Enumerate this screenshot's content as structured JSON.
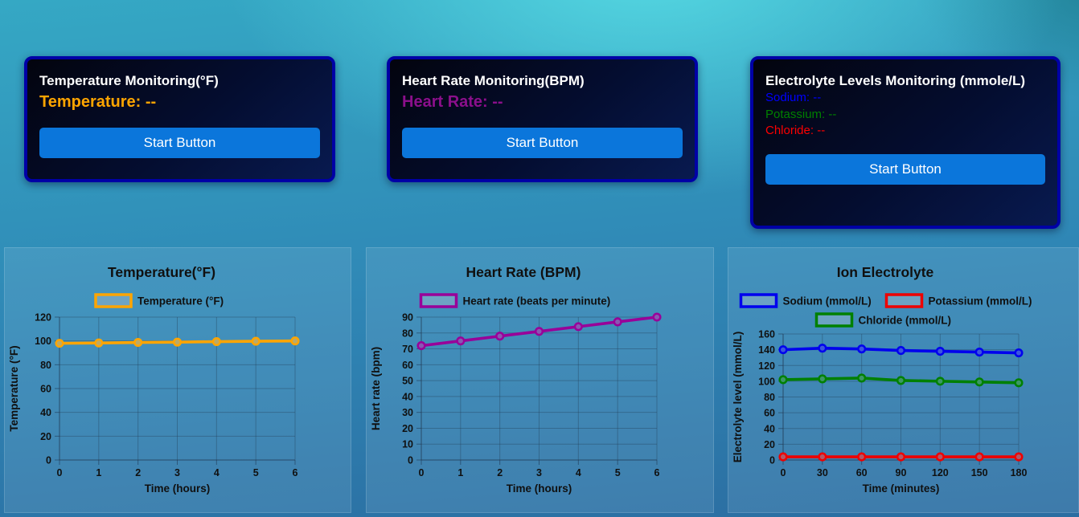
{
  "page": {
    "background_top_color": "#4fd4de",
    "background_bottom_color": "#2b6da1",
    "card_border_color": "#0000a6",
    "button_color": "#0b76db"
  },
  "cards": [
    {
      "title": "Temperature Monitoring(°F)",
      "readings": [
        {
          "label": "Temperature:",
          "value": "--",
          "color": "#FFA500"
        }
      ],
      "button_label": "Start Button"
    },
    {
      "title": "Heart Rate Monitoring(BPM)",
      "readings": [
        {
          "label": "Heart Rate:",
          "value": "--",
          "color": "#8B0F8B"
        }
      ],
      "button_label": "Start Button"
    },
    {
      "title": "Electrolyte Levels Monitoring (mmole/L)",
      "readings": [
        {
          "label": "Sodium:",
          "value": "--",
          "color": "#0000FF"
        },
        {
          "label": "Potassium:",
          "value": "--",
          "color": "#008000"
        },
        {
          "label": "Chloride:",
          "value": "--",
          "color": "#FF0000"
        }
      ],
      "button_label": "Start Button"
    }
  ],
  "chart_data": [
    {
      "type": "line",
      "title": "Temperature(°F)",
      "xlabel": "Time (hours)",
      "ylabel": "Temperature (°F)",
      "x": [
        0,
        1,
        2,
        3,
        4,
        5,
        6
      ],
      "ylim": [
        0,
        120
      ],
      "ytick_step": 20,
      "grid": true,
      "legend_position": "top",
      "series": [
        {
          "name": "Temperature (°F)",
          "color": "#FFA500",
          "values": [
            98,
            98.3,
            98.7,
            99,
            99.4,
            99.7,
            100
          ]
        }
      ]
    },
    {
      "type": "line",
      "title": "Heart Rate (BPM)",
      "xlabel": "Time (hours)",
      "ylabel": "Heart rate (bpm)",
      "x": [
        0,
        1,
        2,
        3,
        4,
        5,
        6
      ],
      "ylim": [
        0,
        90
      ],
      "ytick_step": 10,
      "grid": true,
      "legend_position": "top",
      "series": [
        {
          "name": "Heart rate (beats per minute)",
          "color": "#990099",
          "values": [
            72,
            75,
            78,
            81,
            84,
            87,
            90
          ]
        }
      ]
    },
    {
      "type": "line",
      "title": "Ion Electrolyte",
      "xlabel": "Time (minutes)",
      "ylabel": "Electrolyte level (mmol/L)",
      "x": [
        0,
        30,
        60,
        90,
        120,
        150,
        180
      ],
      "ylim": [
        0,
        160
      ],
      "ytick_step": 20,
      "grid": true,
      "legend_position": "top",
      "series": [
        {
          "name": "Sodium (mmol/L)",
          "color": "#0000EE",
          "values": [
            140,
            142,
            141,
            139,
            138,
            137,
            136
          ]
        },
        {
          "name": "Potassium (mmol/L)",
          "color": "#EE0000",
          "values": [
            4,
            4,
            4,
            4,
            4,
            4,
            4
          ]
        },
        {
          "name": "Chloride (mmol/L)",
          "color": "#008000",
          "values": [
            102,
            103,
            104,
            101,
            100,
            99,
            98
          ]
        }
      ]
    }
  ]
}
